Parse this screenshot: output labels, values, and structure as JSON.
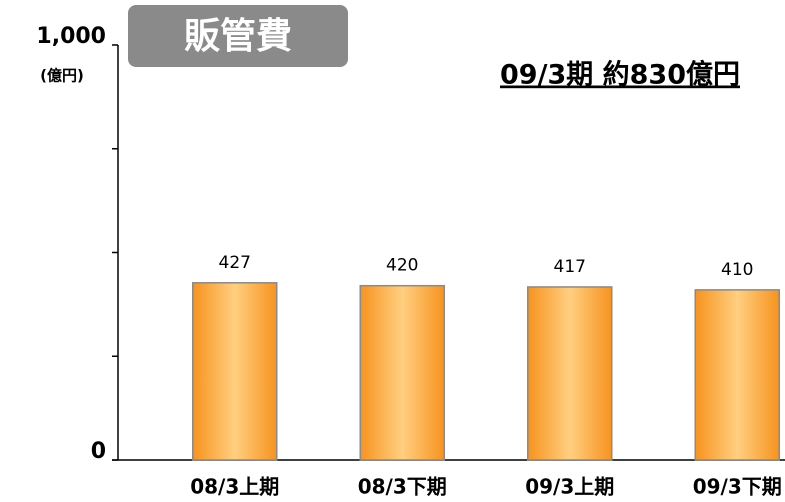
{
  "chart_data": {
    "type": "bar",
    "title": "販管費",
    "annotation": "09/3期 約830億円",
    "y_unit": "(億円)",
    "categories": [
      "08/3上期",
      "08/3下期",
      "09/3上期",
      "09/3下期"
    ],
    "values": [
      427,
      420,
      417,
      410
    ],
    "color": "#f7931e",
    "ylim": [
      0,
      1000
    ],
    "yticks": [
      0,
      {
        "value": 1000,
        "label": "1,000"
      }
    ],
    "minor_yticks": [
      250,
      500,
      750
    ],
    "grid": false
  }
}
